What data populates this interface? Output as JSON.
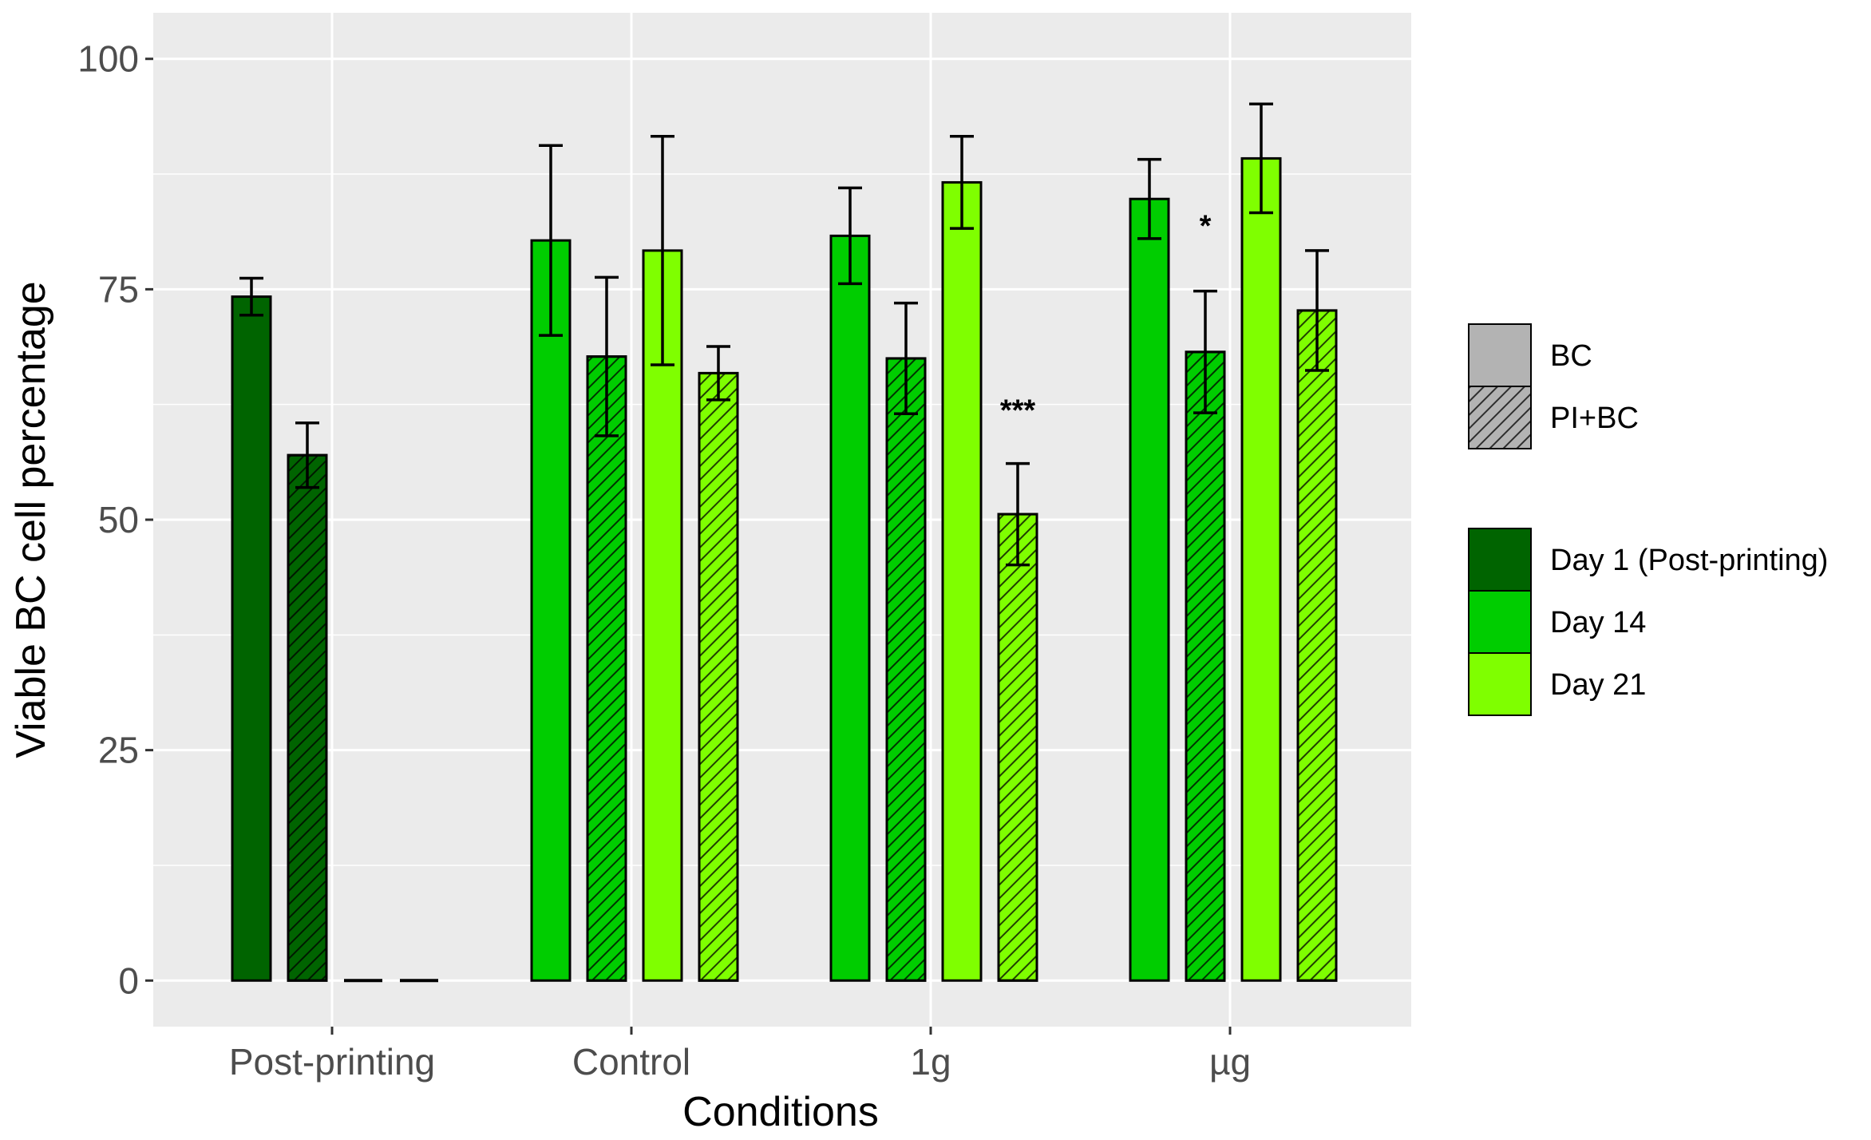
{
  "chart_data": {
    "type": "bar",
    "xlabel": "Conditions",
    "ylabel": "Viable BC cell percentage",
    "ylim": [
      -5,
      105
    ],
    "yticks": [
      0,
      25,
      50,
      75,
      100
    ],
    "grid": true,
    "categories": [
      "Post-printing",
      "Control",
      "1g",
      "µg"
    ],
    "series": [
      {
        "name": "BC – Day 1 (Post-printing)",
        "stain": "BC",
        "day": "Day 1 (Post-printing)",
        "values": [
          74.2,
          null,
          null,
          null
        ],
        "errors": [
          2.0,
          null,
          null,
          null
        ]
      },
      {
        "name": "PI+BC – Day 1 (Post-printing)",
        "stain": "PI+BC",
        "day": "Day 1 (Post-printing)",
        "values": [
          57.0,
          null,
          null,
          null
        ],
        "errors": [
          3.5,
          null,
          null,
          null
        ]
      },
      {
        "name": "BC – Day 14",
        "stain": "BC",
        "day": "Day 14",
        "values": [
          0,
          80.3,
          80.8,
          84.8
        ],
        "errors": [
          null,
          10.3,
          5.2,
          4.3
        ]
      },
      {
        "name": "PI+BC – Day 14",
        "stain": "PI+BC",
        "day": "Day 14",
        "values": [
          0,
          67.7,
          67.5,
          68.2
        ],
        "errors": [
          null,
          8.6,
          6.0,
          6.6
        ]
      },
      {
        "name": "BC – Day 21",
        "stain": "BC",
        "day": "Day 21",
        "values": [
          null,
          79.2,
          86.6,
          89.2
        ],
        "errors": [
          null,
          12.4,
          5.0,
          5.9
        ]
      },
      {
        "name": "PI+BC – Day 21",
        "stain": "PI+BC",
        "day": "Day 21",
        "values": [
          null,
          65.9,
          50.6,
          72.7
        ],
        "errors": [
          null,
          2.9,
          5.5,
          6.5
        ]
      }
    ],
    "annotations": [
      {
        "text": "***",
        "category": "1g",
        "series": "PI+BC – Day 21",
        "y": 62
      },
      {
        "text": "*",
        "category": "µg",
        "series": "PI+BC – Day 14",
        "y": 82
      }
    ],
    "legend": {
      "position": "right",
      "stain_title": "",
      "stain_items": [
        {
          "label": "BC",
          "pattern": "solid"
        },
        {
          "label": "PI+BC",
          "pattern": "hatched"
        }
      ],
      "day_items": [
        {
          "label": "Day  1 (Post-printing)",
          "color": "#006400"
        },
        {
          "label": "Day  14",
          "color": "#00CD00"
        },
        {
          "label": "Day  21",
          "color": "#7FFF00"
        }
      ]
    },
    "colors": {
      "panel_background": "#EBEBEB",
      "grid": "#FFFFFF",
      "bar_outline": "#000000",
      "legend_neutral": "#B3B3B3"
    }
  }
}
